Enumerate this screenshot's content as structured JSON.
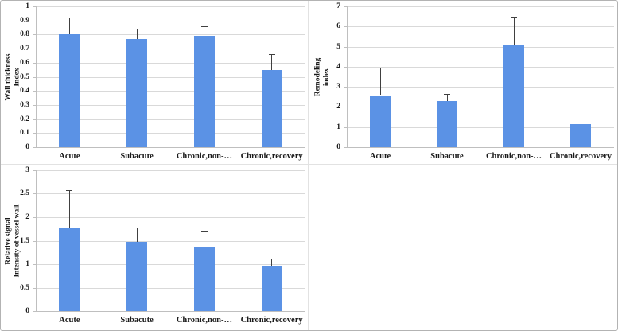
{
  "figure_title": "Three-panel bar chart figure",
  "colors": {
    "bar": "#5b92e5",
    "gridline": "#d9d9d9",
    "axis": "#bfbfbf",
    "error_bar": "#404040",
    "text": "#1a1a1a",
    "panel_border": "#e2e2e2",
    "figure_border": "#b3b3b3"
  },
  "chart_data": [
    {
      "type": "bar",
      "title": "",
      "ylabel_lines": [
        "Wall thickness",
        "Index"
      ],
      "xlabel": "",
      "categories": [
        "Acute",
        "Subacute",
        "Chronic,non-…",
        "Chronic,recovery"
      ],
      "values": [
        0.8,
        0.77,
        0.79,
        0.55
      ],
      "errors_upper": [
        0.12,
        0.07,
        0.07,
        0.11
      ],
      "ylim": [
        0,
        1
      ],
      "ytick_labels": [
        "0",
        "0.1",
        "0.2",
        "0.3",
        "0.4",
        "0.5",
        "0.6",
        "0.7",
        "0.8",
        "0.9",
        "1"
      ],
      "grid": true,
      "legend": "none"
    },
    {
      "type": "bar",
      "title": "",
      "ylabel_lines": [
        "Remodeling",
        "index"
      ],
      "xlabel": "",
      "categories": [
        "Acute",
        "Subacute",
        "Chronic,non-…",
        "Chronic,recovery"
      ],
      "values": [
        2.55,
        2.28,
        5.05,
        1.15
      ],
      "errors_upper": [
        1.4,
        0.38,
        1.45,
        0.48
      ],
      "ylim": [
        0,
        7
      ],
      "ytick_labels": [
        "0",
        "1",
        "2",
        "3",
        "4",
        "5",
        "6",
        "7"
      ],
      "grid": true,
      "legend": "none"
    },
    {
      "type": "bar",
      "title": "",
      "ylabel_lines": [
        "Relative signal",
        "Intensity of vessel wall"
      ],
      "xlabel": "",
      "categories": [
        "Acute",
        "Subacute",
        "Chronic,non-…",
        "Chronic,recovery"
      ],
      "values": [
        1.77,
        1.47,
        1.35,
        0.97
      ],
      "errors_upper": [
        0.8,
        0.31,
        0.37,
        0.15
      ],
      "ylim": [
        0,
        3
      ],
      "ytick_labels": [
        "0",
        "0.5",
        "1",
        "1.5",
        "2",
        "2.5",
        "3"
      ],
      "grid": true,
      "legend": "none"
    }
  ]
}
